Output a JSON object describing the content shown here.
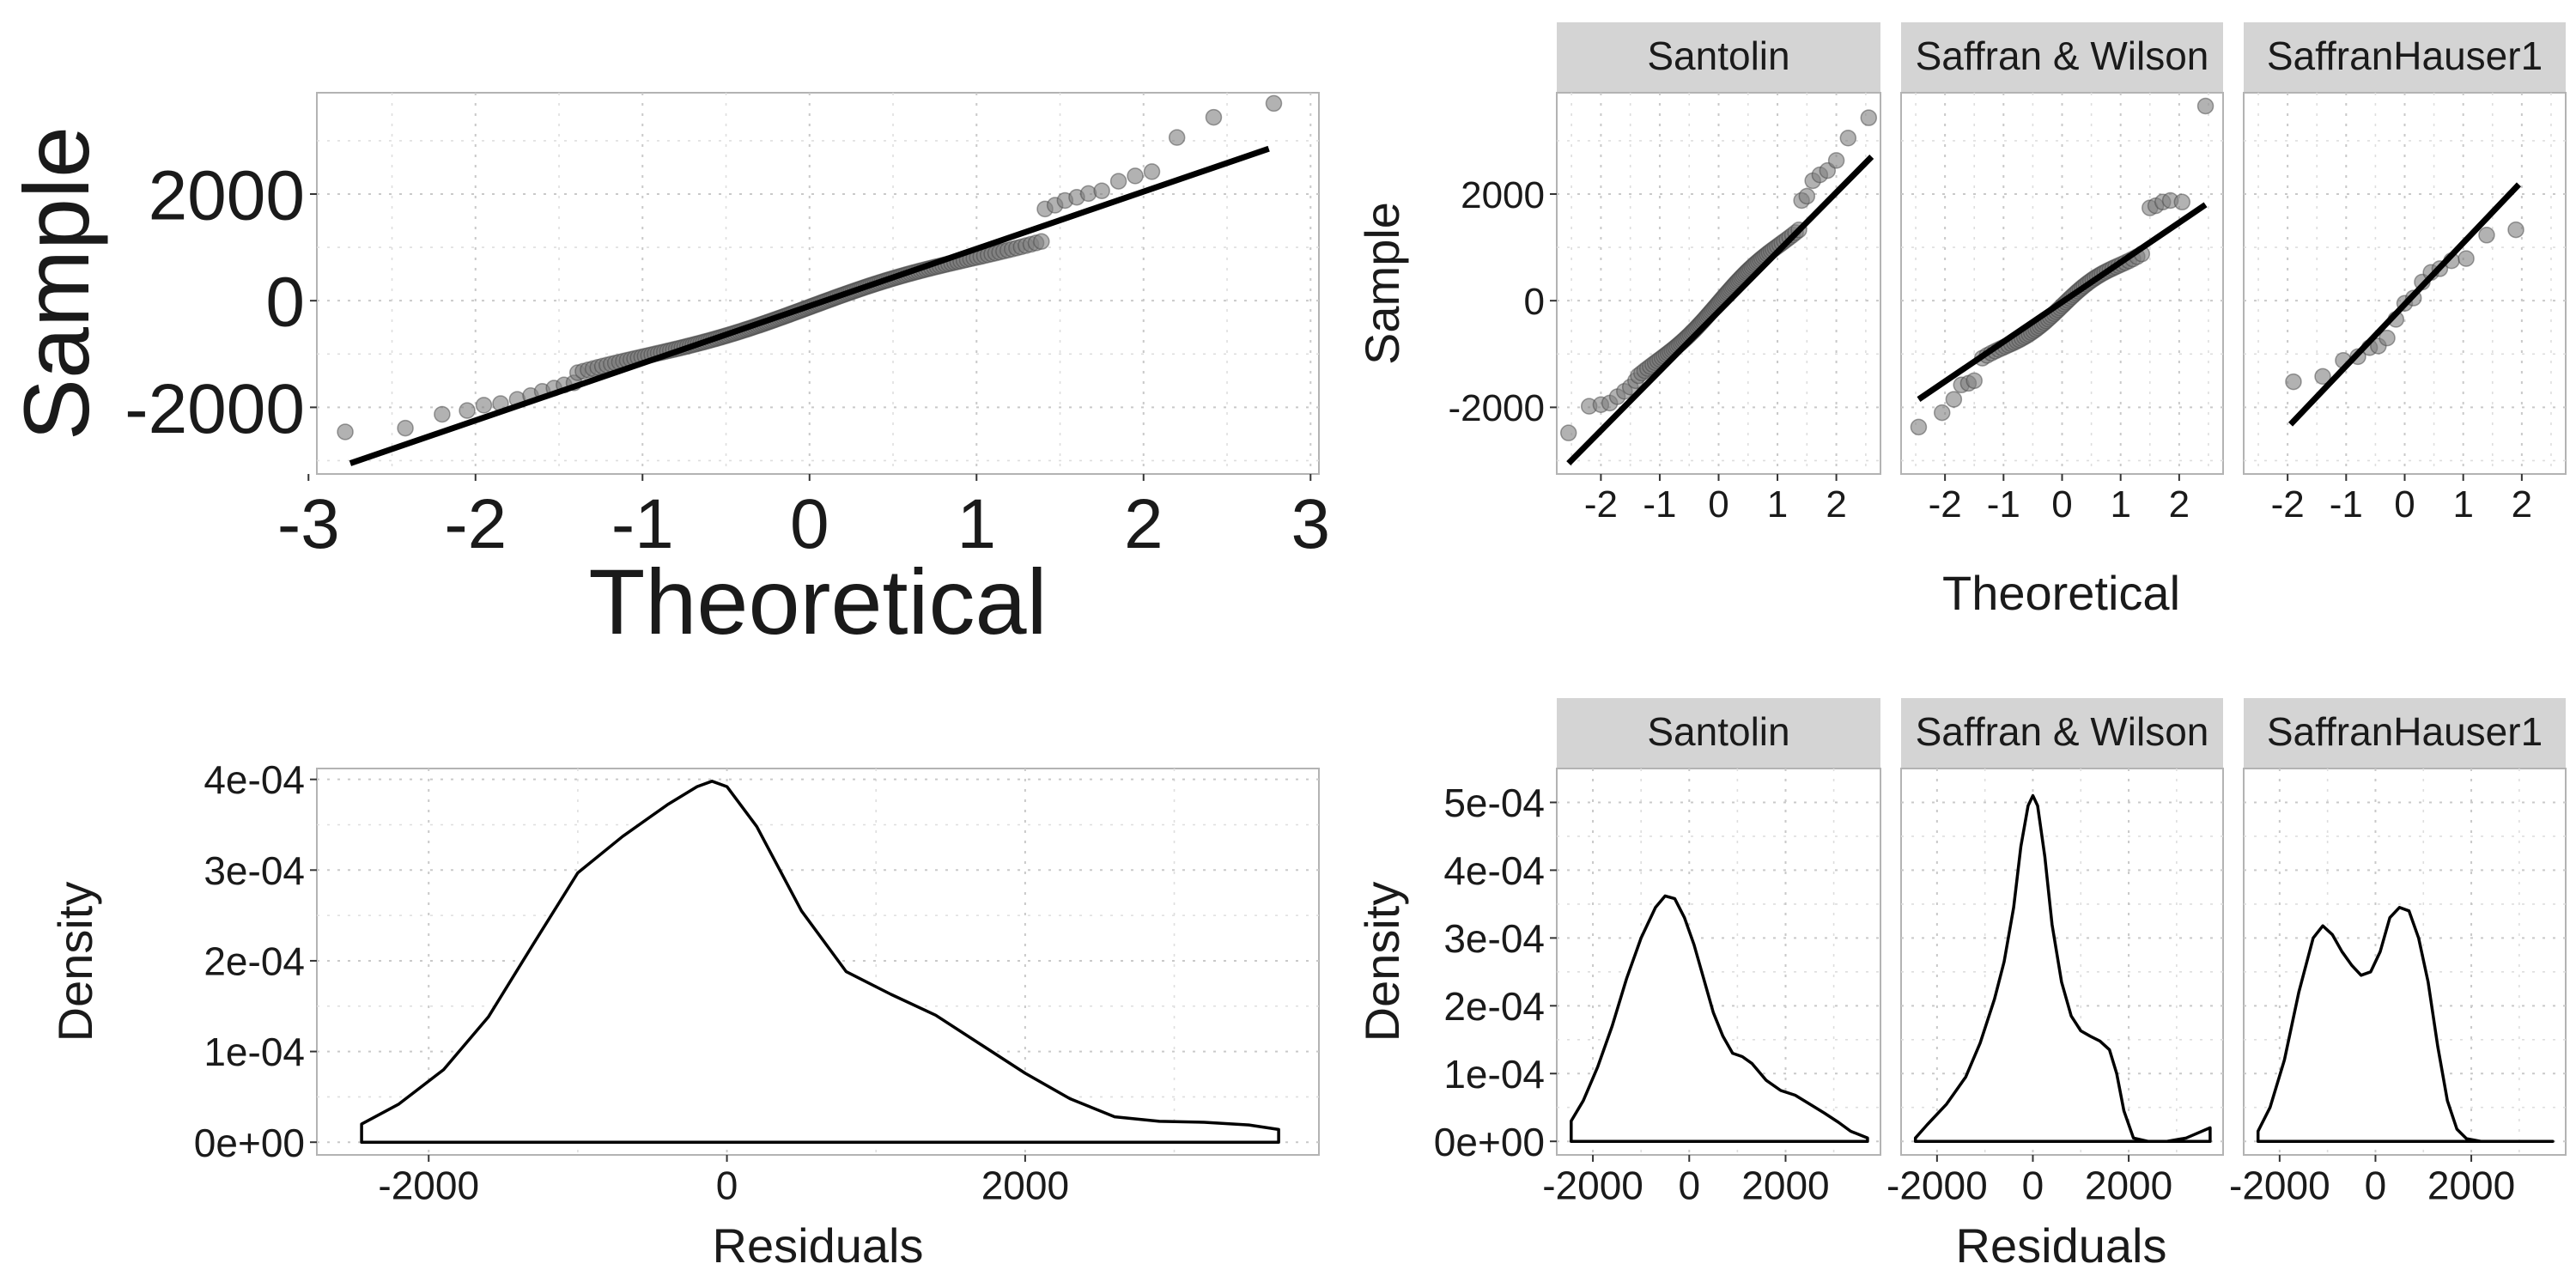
{
  "chart_data": [
    {
      "id": "qq_overall",
      "type": "scatter",
      "title": "",
      "xlabel": "Theoretical",
      "ylabel": "Sample",
      "xlim": [
        -2.95,
        3.05
      ],
      "ylim": [
        -3250,
        3900
      ],
      "x_ticks": [
        -3,
        -2,
        -1,
        0,
        1,
        2,
        3
      ],
      "x_tick_labels": [
        "-3",
        "-2",
        "-1",
        "0",
        "1",
        "2",
        "3"
      ],
      "y_ticks": [
        -2000,
        0,
        2000
      ],
      "y_tick_labels": [
        "-2000",
        "0",
        "2000"
      ],
      "grid": true,
      "reference_line": {
        "x": [
          -2.75,
          2.75
        ],
        "y": [
          -3050,
          2850
        ]
      },
      "n_points": 200,
      "points_tail": {
        "x": [
          -2.78,
          -2.42,
          -2.2,
          -2.05,
          -1.95,
          -1.85,
          -1.75,
          -1.67,
          -1.6,
          -1.53,
          -1.47,
          -1.41,
          1.41,
          1.47,
          1.53,
          1.6,
          1.67,
          1.75,
          1.85,
          1.95,
          2.05,
          2.2,
          2.42,
          2.78
        ],
        "y": [
          -2460,
          -2390,
          -2130,
          -2060,
          -1960,
          -1930,
          -1850,
          -1780,
          -1700,
          -1640,
          -1580,
          -1540,
          1720,
          1790,
          1880,
          1940,
          2010,
          2060,
          2240,
          2340,
          2420,
          3060,
          3440,
          3700
        ]
      },
      "core_fit": {
        "slope": 935,
        "intercept": -120,
        "wiggle_amp": 70,
        "wiggle_freq": 3.2
      }
    },
    {
      "id": "qq_facets",
      "type": "scatter",
      "title": "",
      "xlabel": "Theoretical",
      "ylabel": "Sample",
      "xlim": [
        -2.75,
        2.75
      ],
      "ylim": [
        -3250,
        3900
      ],
      "x_ticks": [
        -2,
        -1,
        0,
        1,
        2
      ],
      "x_tick_labels": [
        "-2",
        "-1",
        "0",
        "1",
        "2"
      ],
      "y_ticks": [
        -2000,
        0,
        2000
      ],
      "y_tick_labels": [
        "-2000",
        "0",
        "2000"
      ],
      "grid": true,
      "facets": [
        {
          "name": "Santolin",
          "n_points": 110,
          "reference_line": {
            "x": [
              -2.55,
              2.6
            ],
            "y": [
              -3050,
              2700
            ]
          },
          "points_tail": {
            "x": [
              -2.55,
              -2.2,
              -2.0,
              -1.85,
              -1.72,
              -1.6,
              -1.5,
              -1.41,
              1.41,
              1.5,
              1.6,
              1.72,
              1.85,
              2.0,
              2.2,
              2.55
            ],
            "y": [
              -2480,
              -1980,
              -1950,
              -1920,
              -1800,
              -1700,
              -1620,
              -1500,
              1880,
              1960,
              2250,
              2360,
              2440,
              2630,
              3050,
              3430
            ]
          },
          "core_fit": {
            "slope": 1050,
            "intercept": -40,
            "wiggle_amp": 80,
            "wiggle_freq": 3.0
          }
        },
        {
          "name": "Saffran & Wilson",
          "n_points": 75,
          "reference_line": {
            "x": [
              -2.45,
              2.45
            ],
            "y": [
              -1850,
              1800
            ]
          },
          "points_tail": {
            "x": [
              -2.45,
              -2.05,
              -1.85,
              -1.72,
              -1.6,
              -1.5,
              1.5,
              1.6,
              1.72,
              1.85,
              2.05,
              2.45
            ],
            "y": [
              -2370,
              -2100,
              -1850,
              -1580,
              -1550,
              -1500,
              1740,
              1780,
              1850,
              1880,
              1850,
              3650
            ]
          },
          "core_fit": {
            "slope": 780,
            "intercept": -100,
            "wiggle_amp": 90,
            "wiggle_freq": 3.2
          }
        },
        {
          "name": "SaffranHauser1",
          "points": {
            "x": [
              -1.9,
              -1.4,
              -1.05,
              -0.8,
              -0.6,
              -0.45,
              -0.3,
              -0.15,
              0.0,
              0.15,
              0.3,
              0.45,
              0.6,
              0.8,
              1.05,
              1.4,
              1.9
            ],
            "y": [
              -1520,
              -1420,
              -1120,
              -1050,
              -880,
              -850,
              -700,
              -350,
              -50,
              50,
              350,
              530,
              600,
              750,
              790,
              1230,
              1330
            ]
          },
          "reference_line": {
            "x": [
              -1.95,
              1.95
            ],
            "y": [
              -2320,
              2180
            ]
          }
        }
      ]
    },
    {
      "id": "density_overall",
      "type": "area",
      "title": "",
      "xlabel": "Residuals",
      "ylabel": "Density",
      "xlim": [
        -2750,
        3970
      ],
      "ylim": [
        -1.4e-05,
        0.000412
      ],
      "x_ticks": [
        -2000,
        0,
        2000
      ],
      "x_tick_labels": [
        "-2000",
        "0",
        "2000"
      ],
      "y_ticks": [
        0,
        0.0001,
        0.0002,
        0.0003,
        0.0004
      ],
      "y_tick_labels": [
        "0e+00",
        "1e-04",
        "2e-04",
        "3e-04",
        "4e-04"
      ],
      "grid": true,
      "x": [
        -2450,
        -2200,
        -1900,
        -1600,
        -1300,
        -1000,
        -700,
        -400,
        -200,
        -100,
        0,
        200,
        500,
        800,
        1100,
        1400,
        1700,
        2000,
        2300,
        2600,
        2900,
        3200,
        3500,
        3700
      ],
      "y": [
        2e-05,
        4.2e-05,
        8e-05,
        0.000138,
        0.000218,
        0.000297,
        0.000337,
        0.000372,
        0.000392,
        0.000398,
        0.000392,
        0.000348,
        0.000255,
        0.000188,
        0.000163,
        0.00014,
        0.000108,
        7.6e-05,
        4.8e-05,
        2.8e-05,
        2.3e-05,
        2.2e-05,
        1.9e-05,
        1.4e-05
      ]
    },
    {
      "id": "density_facets",
      "type": "area",
      "title": "",
      "xlabel": "Residuals",
      "ylabel": "Density",
      "xlim": [
        -2750,
        3970
      ],
      "ylim": [
        -2e-05,
        0.00055
      ],
      "x_ticks": [
        -2000,
        0,
        2000
      ],
      "x_tick_labels": [
        "-2000",
        "0",
        "2000"
      ],
      "y_ticks": [
        0,
        0.0001,
        0.0002,
        0.0003,
        0.0004,
        0.0005
      ],
      "y_tick_labels": [
        "0e+00",
        "1e-04",
        "2e-04",
        "3e-04",
        "4e-04",
        "5e-04"
      ],
      "grid": true,
      "facets": [
        {
          "name": "Santolin",
          "x": [
            -2450,
            -2200,
            -1900,
            -1600,
            -1300,
            -1000,
            -700,
            -500,
            -300,
            -100,
            100,
            300,
            500,
            700,
            900,
            1100,
            1300,
            1600,
            1900,
            2200,
            2500,
            2800,
            3100,
            3350,
            3700
          ],
          "y": [
            3e-05,
            6e-05,
            0.00011,
            0.00017,
            0.00024,
            0.0003,
            0.000345,
            0.000362,
            0.000358,
            0.00033,
            0.00029,
            0.00024,
            0.00019,
            0.000155,
            0.00013,
            0.000125,
            0.000115,
            9e-05,
            7.5e-05,
            6.8e-05,
            5.5e-05,
            4.2e-05,
            2.8e-05,
            1.5e-05,
            5e-06
          ]
        },
        {
          "name": "Saffran & Wilson",
          "x": [
            -2450,
            -2200,
            -1800,
            -1400,
            -1100,
            -800,
            -600,
            -400,
            -250,
            -100,
            0,
            100,
            250,
            400,
            600,
            800,
            1000,
            1200,
            1400,
            1600,
            1750,
            1900,
            2100,
            2400,
            2800,
            3200,
            3700
          ],
          "y": [
            5e-06,
            2.5e-05,
            5.5e-05,
            9.5e-05,
            0.000145,
            0.00021,
            0.000265,
            0.000345,
            0.000435,
            0.000495,
            0.00051,
            0.000495,
            0.00042,
            0.00032,
            0.000235,
            0.000185,
            0.000163,
            0.000155,
            0.000148,
            0.000135,
            0.0001,
            4.5e-05,
            5e-06,
            0,
            0,
            5e-06,
            2e-05
          ]
        },
        {
          "name": "SaffranHauser1",
          "x": [
            -2450,
            -2200,
            -1900,
            -1600,
            -1300,
            -1100,
            -900,
            -700,
            -500,
            -300,
            -100,
            100,
            300,
            500,
            700,
            900,
            1100,
            1300,
            1500,
            1700,
            1900,
            2200,
            2600,
            3000,
            3700
          ],
          "y": [
            1.5e-05,
            5e-05,
            0.00012,
            0.00022,
            0.0003,
            0.000318,
            0.000305,
            0.00028,
            0.00026,
            0.000245,
            0.00025,
            0.00028,
            0.00033,
            0.000345,
            0.00034,
            0.0003,
            0.000235,
            0.00014,
            6e-05,
            1.8e-05,
            4e-06,
            0,
            0,
            0,
            0
          ]
        }
      ]
    }
  ]
}
